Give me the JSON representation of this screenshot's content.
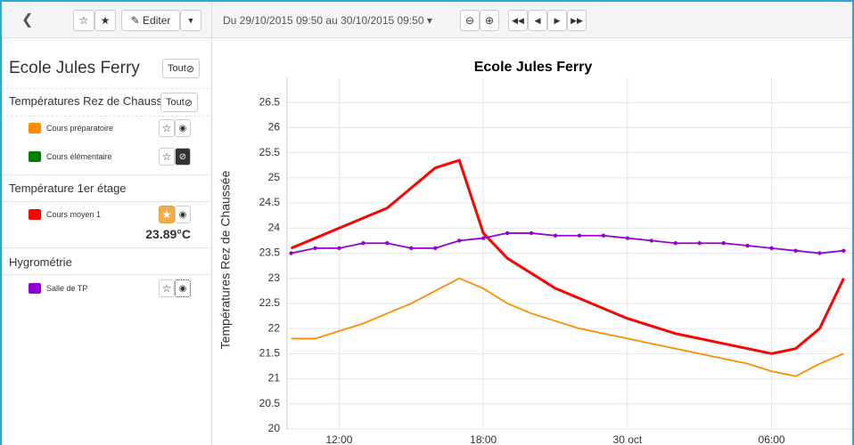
{
  "toolbar": {
    "edit": "Editer",
    "range": "Du 29/10/2015 09:50 au 30/10/2015 09:50"
  },
  "sidebar": {
    "title": "Ecole Jules Ferry",
    "all": "Tout",
    "groups": [
      {
        "name": "Températures Rez de Chauss",
        "all": "Tout"
      },
      {
        "name": "Température 1er étage",
        "last_value": "23.89°C"
      },
      {
        "name": "Hygrométrie"
      }
    ]
  },
  "chart_data": {
    "type": "line",
    "title": "Ecole Jules Ferry",
    "y_label": "Températures Rez de Chaussée",
    "x": [
      10,
      11,
      12,
      13,
      14,
      15,
      16,
      17,
      18,
      19,
      20,
      21,
      22,
      23,
      24,
      25,
      26,
      27,
      28,
      29,
      30,
      31,
      32,
      33
    ],
    "xlim": [
      9.83,
      33.43
    ],
    "xticks": [
      {
        "value": 12,
        "label": "12:00"
      },
      {
        "value": 18,
        "label": "18:00"
      },
      {
        "value": 24,
        "label": "30 oct"
      },
      {
        "value": 30,
        "label": "06:00"
      }
    ],
    "ylim": [
      20,
      27
    ],
    "yticks": [
      20,
      20.5,
      21,
      21.5,
      22,
      22.5,
      23,
      23.5,
      24,
      24.5,
      25,
      25.5,
      26,
      26.5
    ],
    "grid": true,
    "series": [
      {
        "name": "Cours préparatoire",
        "color": "#ff8c00",
        "visible": true,
        "values": [
          21.8,
          21.8,
          21.95,
          22.1,
          22.3,
          22.5,
          22.75,
          23.0,
          22.8,
          22.5,
          22.3,
          22.15,
          22.0,
          21.9,
          21.8,
          21.7,
          21.6,
          21.5,
          21.4,
          21.3,
          21.15,
          21.05,
          21.3,
          21.5
        ]
      },
      {
        "name": "Cours élémentaire",
        "color": "#008000",
        "visible": false,
        "values": [
          null,
          null,
          null,
          null,
          null,
          null,
          null,
          null,
          null,
          null,
          null,
          null,
          null,
          null,
          null,
          null,
          null,
          null,
          null,
          null,
          null,
          null,
          null,
          null
        ]
      },
      {
        "name": "Cours moyen 1",
        "color": "#ff0000",
        "visible": true,
        "values": [
          23.6,
          23.8,
          24.0,
          24.2,
          24.4,
          24.8,
          25.2,
          25.35,
          23.9,
          23.4,
          23.1,
          22.8,
          22.6,
          22.4,
          22.2,
          22.05,
          21.9,
          21.8,
          21.7,
          21.6,
          21.5,
          21.6,
          22.0,
          23.0
        ]
      },
      {
        "name": "Salle de TP",
        "color": "#9400d3",
        "visible": true,
        "values": [
          23.5,
          23.6,
          23.6,
          23.7,
          23.7,
          23.6,
          23.6,
          23.75,
          23.8,
          23.9,
          23.9,
          23.85,
          23.85,
          23.85,
          23.8,
          23.75,
          23.7,
          23.7,
          23.7,
          23.65,
          23.6,
          23.55,
          23.5,
          23.55
        ]
      }
    ]
  }
}
